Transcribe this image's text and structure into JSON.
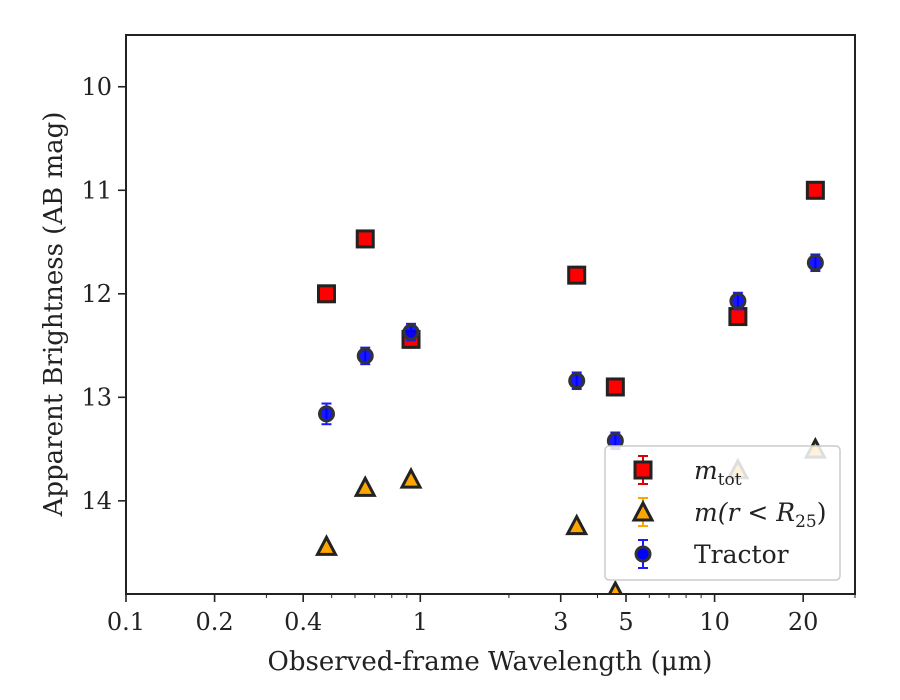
{
  "chart_data": {
    "type": "scatter",
    "xlabel": "Observed-frame Wavelength (μm)",
    "ylabel": "Apparent Brightness (AB mag)",
    "xscale": "log",
    "xlim": [
      0.1,
      30
    ],
    "ylim": [
      14.9,
      9.5
    ],
    "y_inverted": true,
    "x_ticks": [
      {
        "value": 0.1,
        "label": "0.1"
      },
      {
        "value": 0.2,
        "label": "0.2"
      },
      {
        "value": 0.4,
        "label": "0.4"
      },
      {
        "value": 1,
        "label": "1"
      },
      {
        "value": 3,
        "label": "3"
      },
      {
        "value": 5,
        "label": "5"
      },
      {
        "value": 10,
        "label": "10"
      },
      {
        "value": 20,
        "label": "20"
      }
    ],
    "y_ticks": [
      {
        "value": 10,
        "label": "10"
      },
      {
        "value": 11,
        "label": "11"
      },
      {
        "value": 12,
        "label": "12"
      },
      {
        "value": 13,
        "label": "13"
      },
      {
        "value": 14,
        "label": "14"
      }
    ],
    "legend_position": "lower-right",
    "grid": false,
    "series": [
      {
        "name_prefix": "m",
        "name_sub": "tot",
        "marker": "square",
        "color": "#ff0000",
        "edge": "#222222",
        "errcolor": "#e00000",
        "points": [
          {
            "x": 0.48,
            "y": 12.0,
            "err": 0.08
          },
          {
            "x": 0.65,
            "y": 11.47,
            "err": 0.08
          },
          {
            "x": 0.93,
            "y": 12.44,
            "err": 0.08
          },
          {
            "x": 3.4,
            "y": 11.82,
            "err": 0.08
          },
          {
            "x": 4.6,
            "y": 12.9,
            "err": 0.08
          },
          {
            "x": 12.0,
            "y": 12.22,
            "err": 0.08
          },
          {
            "x": 22.0,
            "y": 11.0,
            "err": 0.08
          }
        ]
      },
      {
        "name_prefix": "m(r < R",
        "name_sub": "25",
        "name_suffix": ")",
        "marker": "triangle",
        "color": "#ffa500",
        "edge": "#222222",
        "errcolor": "#ffa500",
        "points": [
          {
            "x": 0.48,
            "y": 14.44,
            "err": 0.02
          },
          {
            "x": 0.65,
            "y": 13.87,
            "err": 0.02
          },
          {
            "x": 0.93,
            "y": 13.79,
            "err": 0.02
          },
          {
            "x": 3.4,
            "y": 14.24,
            "err": 0.02
          },
          {
            "x": 4.6,
            "y": 14.88,
            "err": 0.02
          },
          {
            "x": 12.0,
            "y": 13.7,
            "err": 0.02
          },
          {
            "x": 22.0,
            "y": 13.5,
            "err": 0.02
          }
        ]
      },
      {
        "name": "Tractor",
        "marker": "circle",
        "color": "#0000ff",
        "edge": "#333333",
        "errcolor": "#1a1aff",
        "points": [
          {
            "x": 0.48,
            "y": 13.16,
            "err": 0.1
          },
          {
            "x": 0.65,
            "y": 12.6,
            "err": 0.08
          },
          {
            "x": 0.93,
            "y": 12.37,
            "err": 0.08
          },
          {
            "x": 3.4,
            "y": 12.84,
            "err": 0.08
          },
          {
            "x": 4.6,
            "y": 13.42,
            "err": 0.08
          },
          {
            "x": 12.0,
            "y": 12.07,
            "err": 0.08
          },
          {
            "x": 22.0,
            "y": 11.7,
            "err": 0.08
          }
        ]
      }
    ]
  }
}
